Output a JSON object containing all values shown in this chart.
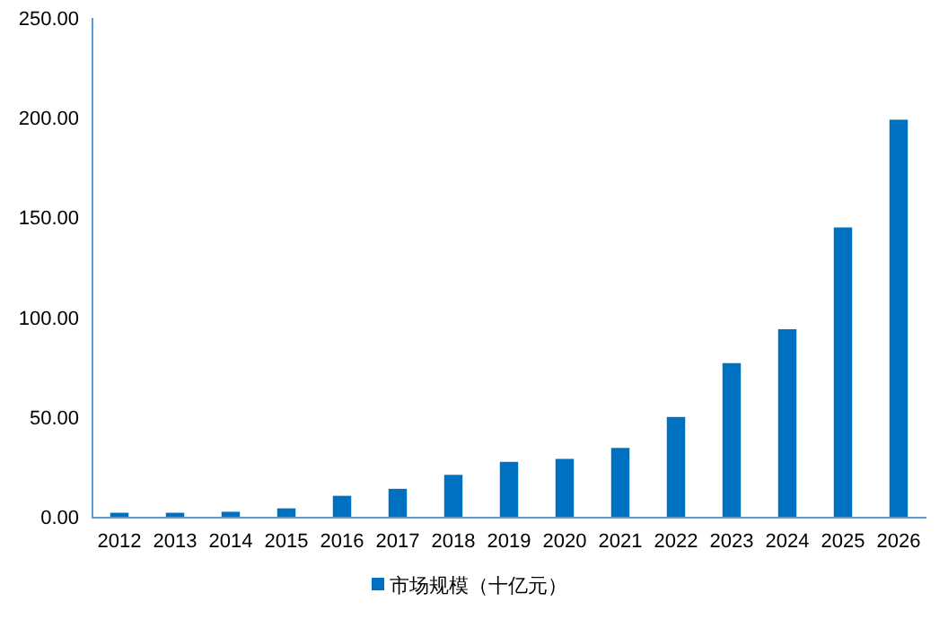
{
  "chart_data": {
    "type": "bar",
    "categories": [
      "2012",
      "2013",
      "2014",
      "2015",
      "2016",
      "2017",
      "2018",
      "2019",
      "2020",
      "2021",
      "2022",
      "2023",
      "2024",
      "2025",
      "2026"
    ],
    "series": [
      {
        "name": "市场规模（十亿元）",
        "color": "#0070c0",
        "values": [
          2,
          2,
          2.5,
          4.2,
          10.5,
          14,
          21,
          27.5,
          29,
          34.5,
          50,
          77,
          94,
          145,
          199
        ]
      }
    ],
    "ylim": [
      0,
      250
    ],
    "yticks": [
      {
        "value": 0,
        "label": "0.00"
      },
      {
        "value": 50,
        "label": "50.00"
      },
      {
        "value": 100,
        "label": "100.00"
      },
      {
        "value": 150,
        "label": "150.00"
      },
      {
        "value": 200,
        "label": "200.00"
      },
      {
        "value": 250,
        "label": "250.00"
      }
    ],
    "grid": false,
    "legend": "bottom"
  }
}
